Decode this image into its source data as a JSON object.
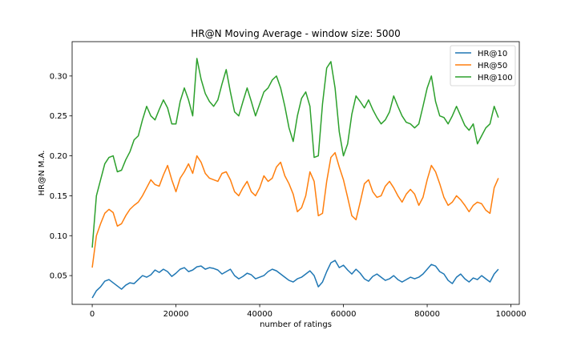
{
  "chart_data": {
    "type": "line",
    "title": "HR@N Moving Average - window size: 5000",
    "xlabel": "number of ratings",
    "ylabel": "HR@N M.A.",
    "xlim": [
      -4800,
      102000
    ],
    "ylim": [
      0.014,
      0.343
    ],
    "x_ticks": [
      0,
      20000,
      40000,
      60000,
      80000,
      100000
    ],
    "x_tick_labels": [
      "0",
      "20000",
      "40000",
      "60000",
      "80000",
      "100000"
    ],
    "y_ticks": [
      0.05,
      0.1,
      0.15,
      0.2,
      0.25,
      0.3
    ],
    "y_tick_labels": [
      "0.05",
      "0.10",
      "0.15",
      "0.20",
      "0.25",
      "0.30"
    ],
    "grid": false,
    "legend_position": "top-right",
    "colors": {
      "HR@10": "#1f77b4",
      "HR@50": "#ff7f0e",
      "HR@100": "#2ca02c"
    },
    "x": [
      0,
      1000,
      2000,
      3000,
      4000,
      5000,
      6000,
      7000,
      8000,
      9000,
      10000,
      11000,
      12000,
      13000,
      14000,
      15000,
      16000,
      17000,
      18000,
      19000,
      20000,
      21000,
      22000,
      23000,
      24000,
      25000,
      26000,
      27000,
      28000,
      29000,
      30000,
      31000,
      32000,
      33000,
      34000,
      35000,
      36000,
      37000,
      38000,
      39000,
      40000,
      41000,
      42000,
      43000,
      44000,
      45000,
      46000,
      47000,
      48000,
      49000,
      50000,
      51000,
      52000,
      53000,
      54000,
      55000,
      56000,
      57000,
      58000,
      59000,
      60000,
      61000,
      62000,
      63000,
      64000,
      65000,
      66000,
      67000,
      68000,
      69000,
      70000,
      71000,
      72000,
      73000,
      74000,
      75000,
      76000,
      77000,
      78000,
      79000,
      80000,
      81000,
      82000,
      83000,
      84000,
      85000,
      86000,
      87000,
      88000,
      89000,
      90000,
      91000,
      92000,
      93000,
      94000,
      95000,
      96000,
      97000
    ],
    "series": [
      {
        "name": "HR@10",
        "values": [
          0.022,
          0.031,
          0.036,
          0.043,
          0.045,
          0.041,
          0.037,
          0.033,
          0.038,
          0.041,
          0.04,
          0.045,
          0.05,
          0.048,
          0.051,
          0.057,
          0.054,
          0.058,
          0.055,
          0.049,
          0.053,
          0.058,
          0.06,
          0.055,
          0.057,
          0.061,
          0.062,
          0.058,
          0.06,
          0.059,
          0.057,
          0.052,
          0.055,
          0.058,
          0.05,
          0.046,
          0.049,
          0.053,
          0.051,
          0.046,
          0.048,
          0.05,
          0.055,
          0.058,
          0.056,
          0.052,
          0.048,
          0.044,
          0.042,
          0.046,
          0.048,
          0.052,
          0.056,
          0.05,
          0.036,
          0.042,
          0.055,
          0.066,
          0.069,
          0.06,
          0.063,
          0.057,
          0.052,
          0.058,
          0.053,
          0.046,
          0.043,
          0.049,
          0.052,
          0.048,
          0.044,
          0.046,
          0.05,
          0.045,
          0.042,
          0.045,
          0.048,
          0.046,
          0.048,
          0.052,
          0.058,
          0.064,
          0.062,
          0.055,
          0.052,
          0.044,
          0.04,
          0.048,
          0.052,
          0.046,
          0.042,
          0.047,
          0.045,
          0.05,
          0.046,
          0.042,
          0.052,
          0.058
        ]
      },
      {
        "name": "HR@50",
        "values": [
          0.06,
          0.1,
          0.115,
          0.128,
          0.133,
          0.129,
          0.112,
          0.115,
          0.125,
          0.133,
          0.138,
          0.142,
          0.15,
          0.16,
          0.17,
          0.164,
          0.162,
          0.176,
          0.188,
          0.17,
          0.155,
          0.172,
          0.18,
          0.19,
          0.178,
          0.2,
          0.192,
          0.178,
          0.172,
          0.17,
          0.168,
          0.178,
          0.18,
          0.17,
          0.155,
          0.15,
          0.16,
          0.168,
          0.155,
          0.15,
          0.16,
          0.175,
          0.168,
          0.172,
          0.186,
          0.192,
          0.175,
          0.165,
          0.152,
          0.13,
          0.135,
          0.15,
          0.18,
          0.168,
          0.125,
          0.128,
          0.168,
          0.198,
          0.204,
          0.186,
          0.17,
          0.148,
          0.125,
          0.12,
          0.142,
          0.165,
          0.17,
          0.155,
          0.148,
          0.15,
          0.162,
          0.168,
          0.16,
          0.15,
          0.142,
          0.152,
          0.158,
          0.152,
          0.138,
          0.148,
          0.17,
          0.188,
          0.18,
          0.165,
          0.148,
          0.138,
          0.142,
          0.15,
          0.145,
          0.138,
          0.13,
          0.138,
          0.142,
          0.14,
          0.132,
          0.128,
          0.16,
          0.172
        ]
      },
      {
        "name": "HR@100",
        "values": [
          0.085,
          0.15,
          0.17,
          0.19,
          0.198,
          0.2,
          0.18,
          0.182,
          0.195,
          0.205,
          0.22,
          0.225,
          0.245,
          0.262,
          0.25,
          0.245,
          0.258,
          0.27,
          0.26,
          0.24,
          0.24,
          0.268,
          0.285,
          0.27,
          0.25,
          0.322,
          0.296,
          0.278,
          0.268,
          0.262,
          0.27,
          0.29,
          0.308,
          0.28,
          0.255,
          0.25,
          0.268,
          0.285,
          0.268,
          0.25,
          0.265,
          0.28,
          0.285,
          0.295,
          0.3,
          0.285,
          0.262,
          0.235,
          0.218,
          0.25,
          0.272,
          0.28,
          0.262,
          0.198,
          0.2,
          0.265,
          0.31,
          0.318,
          0.285,
          0.23,
          0.2,
          0.215,
          0.252,
          0.275,
          0.268,
          0.26,
          0.27,
          0.258,
          0.248,
          0.24,
          0.245,
          0.255,
          0.275,
          0.262,
          0.25,
          0.242,
          0.24,
          0.235,
          0.24,
          0.262,
          0.285,
          0.3,
          0.268,
          0.25,
          0.248,
          0.24,
          0.25,
          0.262,
          0.25,
          0.238,
          0.232,
          0.24,
          0.215,
          0.225,
          0.235,
          0.24,
          0.262,
          0.248
        ]
      }
    ]
  }
}
